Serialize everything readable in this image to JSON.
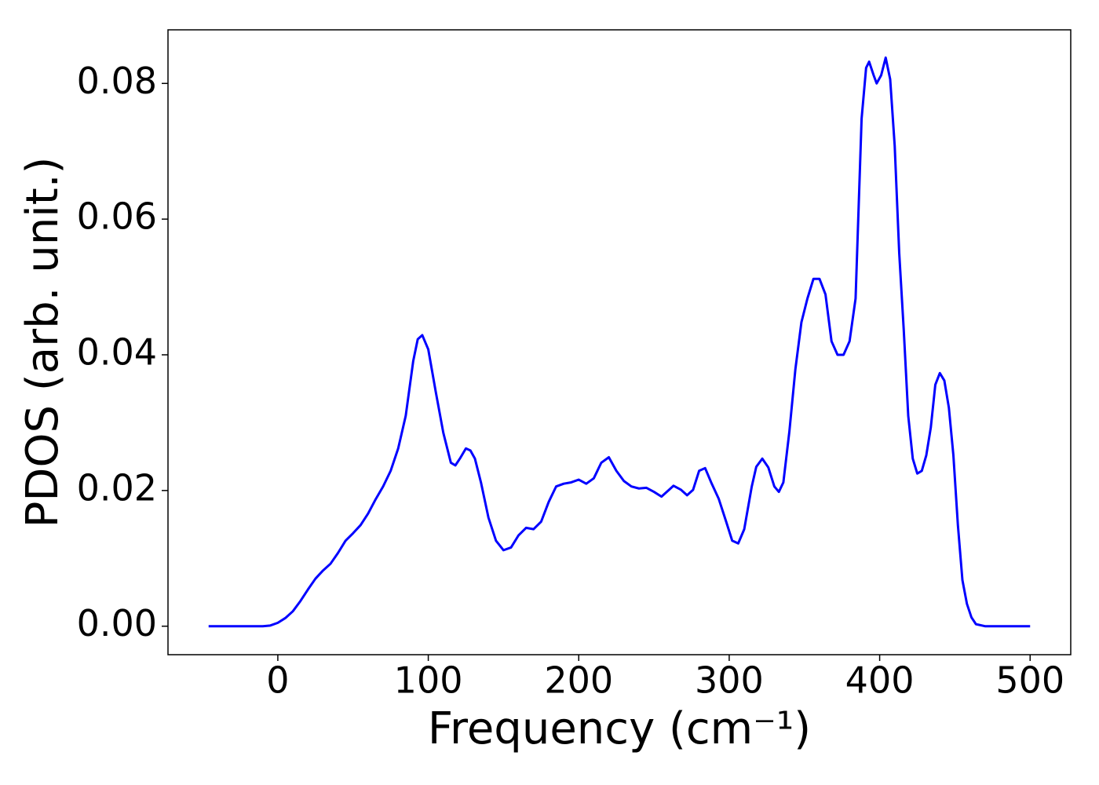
{
  "chart_data": {
    "type": "line",
    "xlabel": "Frequency (cm⁻¹)",
    "ylabel": "PDOS (arb. unit.)",
    "xlim": [
      -73,
      527
    ],
    "ylim": [
      -0.0042,
      0.0879
    ],
    "xticks": [
      0,
      100,
      200,
      300,
      400,
      500
    ],
    "yticks": [
      {
        "value": 0,
        "label": "0.00"
      },
      {
        "value": 0.02,
        "label": "0.02"
      },
      {
        "value": 0.04,
        "label": "0.04"
      },
      {
        "value": 0.06,
        "label": "0.06"
      },
      {
        "value": 0.08,
        "label": "0.08"
      }
    ],
    "x": [
      -46,
      -40,
      -30,
      -20,
      -10,
      -5,
      0,
      5,
      10,
      15,
      20,
      25,
      30,
      35,
      40,
      45,
      50,
      55,
      60,
      65,
      70,
      75,
      80,
      85,
      90,
      93,
      96,
      100,
      105,
      110,
      115,
      118,
      121,
      125,
      128,
      131,
      135,
      140,
      145,
      150,
      155,
      160,
      165,
      170,
      175,
      180,
      185,
      190,
      195,
      200,
      205,
      210,
      215,
      220,
      225,
      230,
      235,
      240,
      245,
      250,
      255,
      260,
      263,
      268,
      272,
      276,
      280,
      284,
      288,
      293,
      298,
      302,
      306,
      310,
      315,
      318,
      322,
      326,
      330,
      333,
      336,
      340,
      344,
      348,
      352,
      356,
      360,
      364,
      368,
      372,
      376,
      380,
      384,
      388,
      391,
      393,
      396,
      398,
      401,
      404,
      407,
      410,
      413,
      416,
      419,
      422,
      425,
      428,
      431,
      434,
      437,
      440,
      443,
      446,
      449,
      452,
      455,
      458,
      461,
      464,
      470,
      480,
      490,
      500
    ],
    "series": [
      {
        "name": "PDOS",
        "color": "#0000ff",
        "values": [
          0,
          0,
          0,
          0,
          0,
          0.0001,
          0.0005,
          0.0012,
          0.0022,
          0.0037,
          0.0054,
          0.007,
          0.0082,
          0.0092,
          0.0108,
          0.0126,
          0.0137,
          0.0149,
          0.0166,
          0.0187,
          0.0206,
          0.0229,
          0.0262,
          0.031,
          0.0391,
          0.0423,
          0.0429,
          0.0408,
          0.0345,
          0.0285,
          0.0241,
          0.0237,
          0.0247,
          0.0262,
          0.0259,
          0.0247,
          0.0212,
          0.016,
          0.0126,
          0.0112,
          0.0116,
          0.0134,
          0.0145,
          0.0143,
          0.0154,
          0.0183,
          0.0206,
          0.021,
          0.0212,
          0.0216,
          0.021,
          0.0218,
          0.0241,
          0.0249,
          0.0229,
          0.0214,
          0.0206,
          0.0203,
          0.0204,
          0.0198,
          0.0191,
          0.0201,
          0.0207,
          0.0201,
          0.0193,
          0.0201,
          0.0229,
          0.0233,
          0.0212,
          0.0188,
          0.0154,
          0.0126,
          0.0122,
          0.0143,
          0.0206,
          0.0235,
          0.0247,
          0.0234,
          0.0206,
          0.0198,
          0.0212,
          0.0287,
          0.0379,
          0.0448,
          0.0483,
          0.0512,
          0.0512,
          0.0489,
          0.042,
          0.04,
          0.04,
          0.042,
          0.0483,
          0.0748,
          0.0823,
          0.0832,
          0.0812,
          0.08,
          0.0812,
          0.0838,
          0.0806,
          0.0708,
          0.055,
          0.0437,
          0.031,
          0.0247,
          0.0225,
          0.0229,
          0.0252,
          0.0293,
          0.0356,
          0.0373,
          0.0362,
          0.0322,
          0.0252,
          0.0149,
          0.0068,
          0.0033,
          0.0013,
          0.0003,
          0,
          0,
          0,
          0
        ]
      }
    ]
  }
}
